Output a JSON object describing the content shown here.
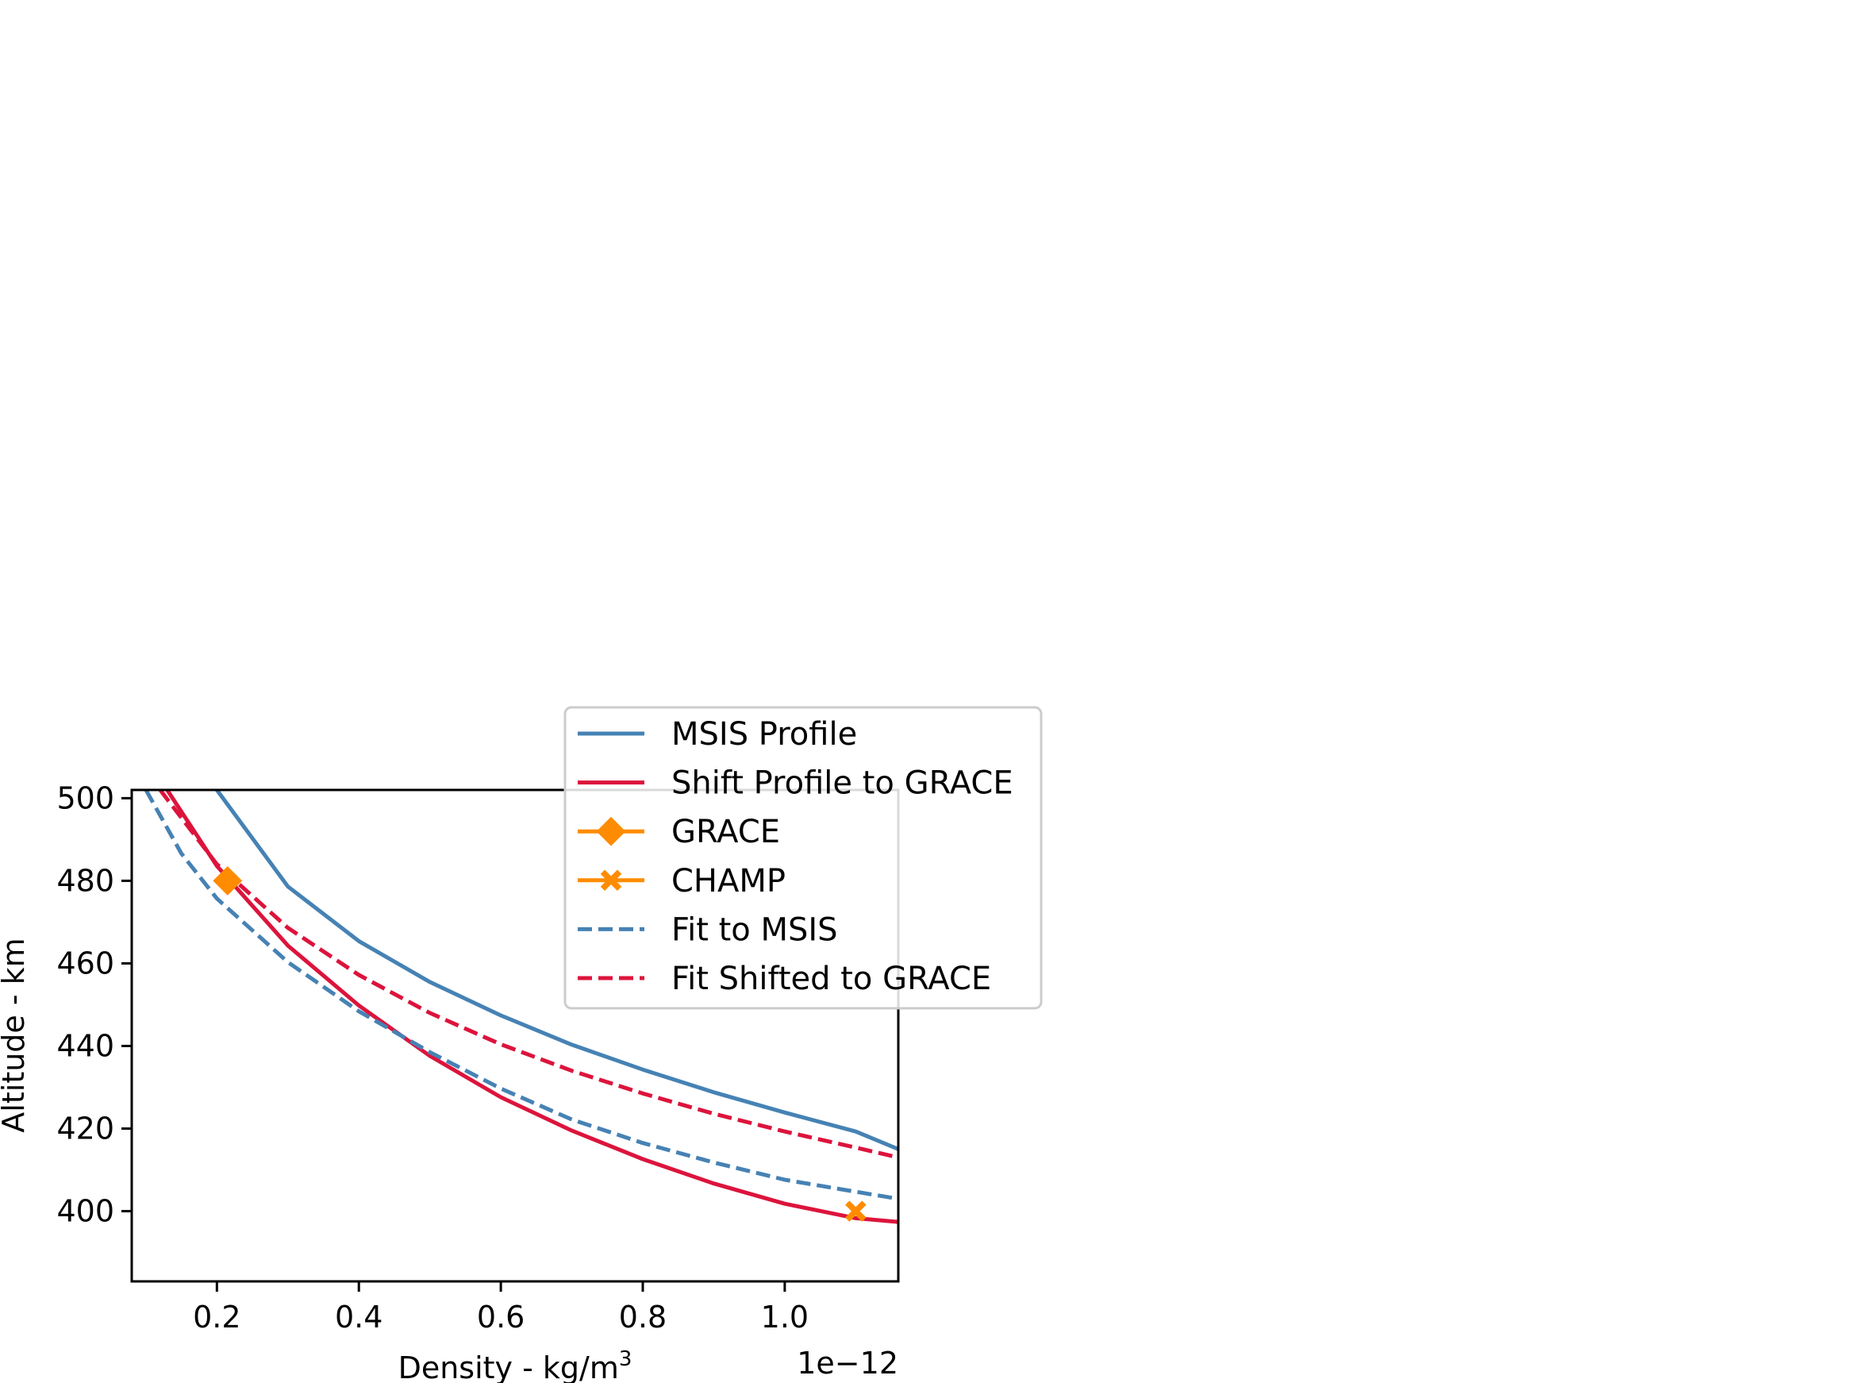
{
  "chart_data": {
    "type": "line",
    "title": "",
    "xlabel": "Density - kg/m",
    "xlabel_superscript": "3",
    "ylabel": "Altitude - km",
    "x_offset_label": "1e−12",
    "xlim": [
      0.08,
      1.16
    ],
    "ylim": [
      383,
      502
    ],
    "x_ticks": [
      0.2,
      0.4,
      0.6,
      0.8,
      1.0
    ],
    "x_tick_labels": [
      "0.2",
      "0.4",
      "0.6",
      "0.8",
      "1.0"
    ],
    "y_ticks": [
      400,
      420,
      440,
      460,
      480,
      500
    ],
    "y_tick_labels": [
      "400",
      "420",
      "440",
      "460",
      "480",
      "500"
    ],
    "grid": false,
    "legend_placement": "top-right, outside plot",
    "series": [
      {
        "name": "MSIS Profile",
        "color": "#4682b4",
        "dash": "solid",
        "marker": "none",
        "points": [
          [
            0.2,
            502
          ],
          [
            0.3,
            478.6
          ],
          [
            0.4,
            465.4
          ],
          [
            0.5,
            455.5
          ],
          [
            0.6,
            447.4
          ],
          [
            0.7,
            440.3
          ],
          [
            0.8,
            434.3
          ],
          [
            0.9,
            428.8
          ],
          [
            1.0,
            423.9
          ],
          [
            1.1,
            419.3
          ],
          [
            1.16,
            415
          ]
        ]
      },
      {
        "name": "Shift Profile to GRACE",
        "color": "#dc143c",
        "dash": "solid",
        "marker": "none",
        "points": [
          [
            0.13,
            502
          ],
          [
            0.2,
            483.6
          ],
          [
            0.3,
            464.3
          ],
          [
            0.4,
            449.8
          ],
          [
            0.5,
            437.6
          ],
          [
            0.6,
            427.6
          ],
          [
            0.7,
            419.5
          ],
          [
            0.8,
            412.6
          ],
          [
            0.9,
            406.7
          ],
          [
            1.0,
            401.8
          ],
          [
            1.1,
            398.3
          ],
          [
            1.16,
            397.4
          ]
        ]
      },
      {
        "name": "GRACE",
        "color": "#ff8c00",
        "dash": "solid",
        "marker": "diamond",
        "points": [
          [
            0.215,
            480
          ]
        ]
      },
      {
        "name": "CHAMP",
        "color": "#ff8c00",
        "dash": "solid",
        "marker": "x-filled",
        "points": [
          [
            1.1,
            400
          ]
        ]
      },
      {
        "name": "Fit to MSIS",
        "color": "#4682b4",
        "dash": "dashed",
        "marker": "none",
        "points": [
          [
            0.1,
            502
          ],
          [
            0.15,
            486.6
          ],
          [
            0.2,
            475.7
          ],
          [
            0.3,
            460.3
          ],
          [
            0.4,
            448.4
          ],
          [
            0.5,
            438.5
          ],
          [
            0.6,
            429.7
          ],
          [
            0.7,
            422.2
          ],
          [
            0.8,
            416.5
          ],
          [
            0.9,
            411.8
          ],
          [
            1.0,
            407.6
          ],
          [
            1.1,
            404.7
          ],
          [
            1.16,
            403
          ]
        ]
      },
      {
        "name": "Fit Shifted to GRACE",
        "color": "#dc143c",
        "dash": "dashed",
        "marker": "none",
        "points": [
          [
            0.12,
            502
          ],
          [
            0.2,
            484
          ],
          [
            0.3,
            468.6
          ],
          [
            0.4,
            457.2
          ],
          [
            0.5,
            448
          ],
          [
            0.6,
            440.4
          ],
          [
            0.7,
            434
          ],
          [
            0.8,
            428.5
          ],
          [
            0.9,
            423.6
          ],
          [
            1.0,
            419.3
          ],
          [
            1.1,
            415.4
          ],
          [
            1.16,
            413
          ]
        ]
      }
    ]
  }
}
